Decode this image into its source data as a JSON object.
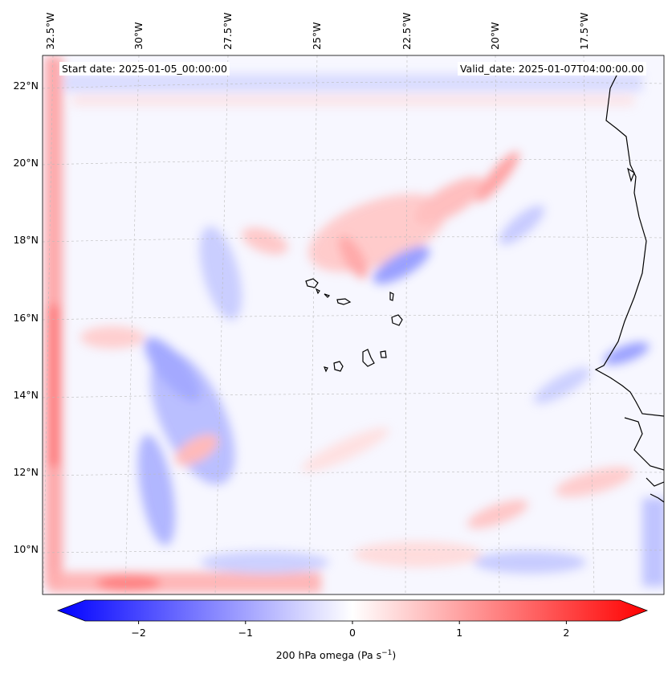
{
  "map": {
    "start_date": "Start date: 2025-01-05_00:00:00",
    "valid_date": "Valid_date: 2025-01-07T04:00:00.00",
    "lon_labels": [
      "32.5°W",
      "30°W",
      "27.5°W",
      "25°W",
      "22.5°W",
      "20°W",
      "17.5°W"
    ],
    "lat_labels": [
      "22°N",
      "20°N",
      "18°N",
      "16°N",
      "14°N",
      "12°N",
      "10°N"
    ],
    "colors": {
      "negative": "#0000ff",
      "neutral": "#ffffff",
      "positive": "#ff0000",
      "coastline": "#000000"
    }
  },
  "colorbar": {
    "tick_labels": [
      "−2",
      "−1",
      "0",
      "1",
      "2"
    ],
    "tick_values": [
      -2,
      -1,
      0,
      1,
      2
    ],
    "range": [
      -2.5,
      2.5
    ],
    "label_main": "200 hPa omega (Pa s",
    "label_sup": "−1",
    "label_end": ")"
  }
}
